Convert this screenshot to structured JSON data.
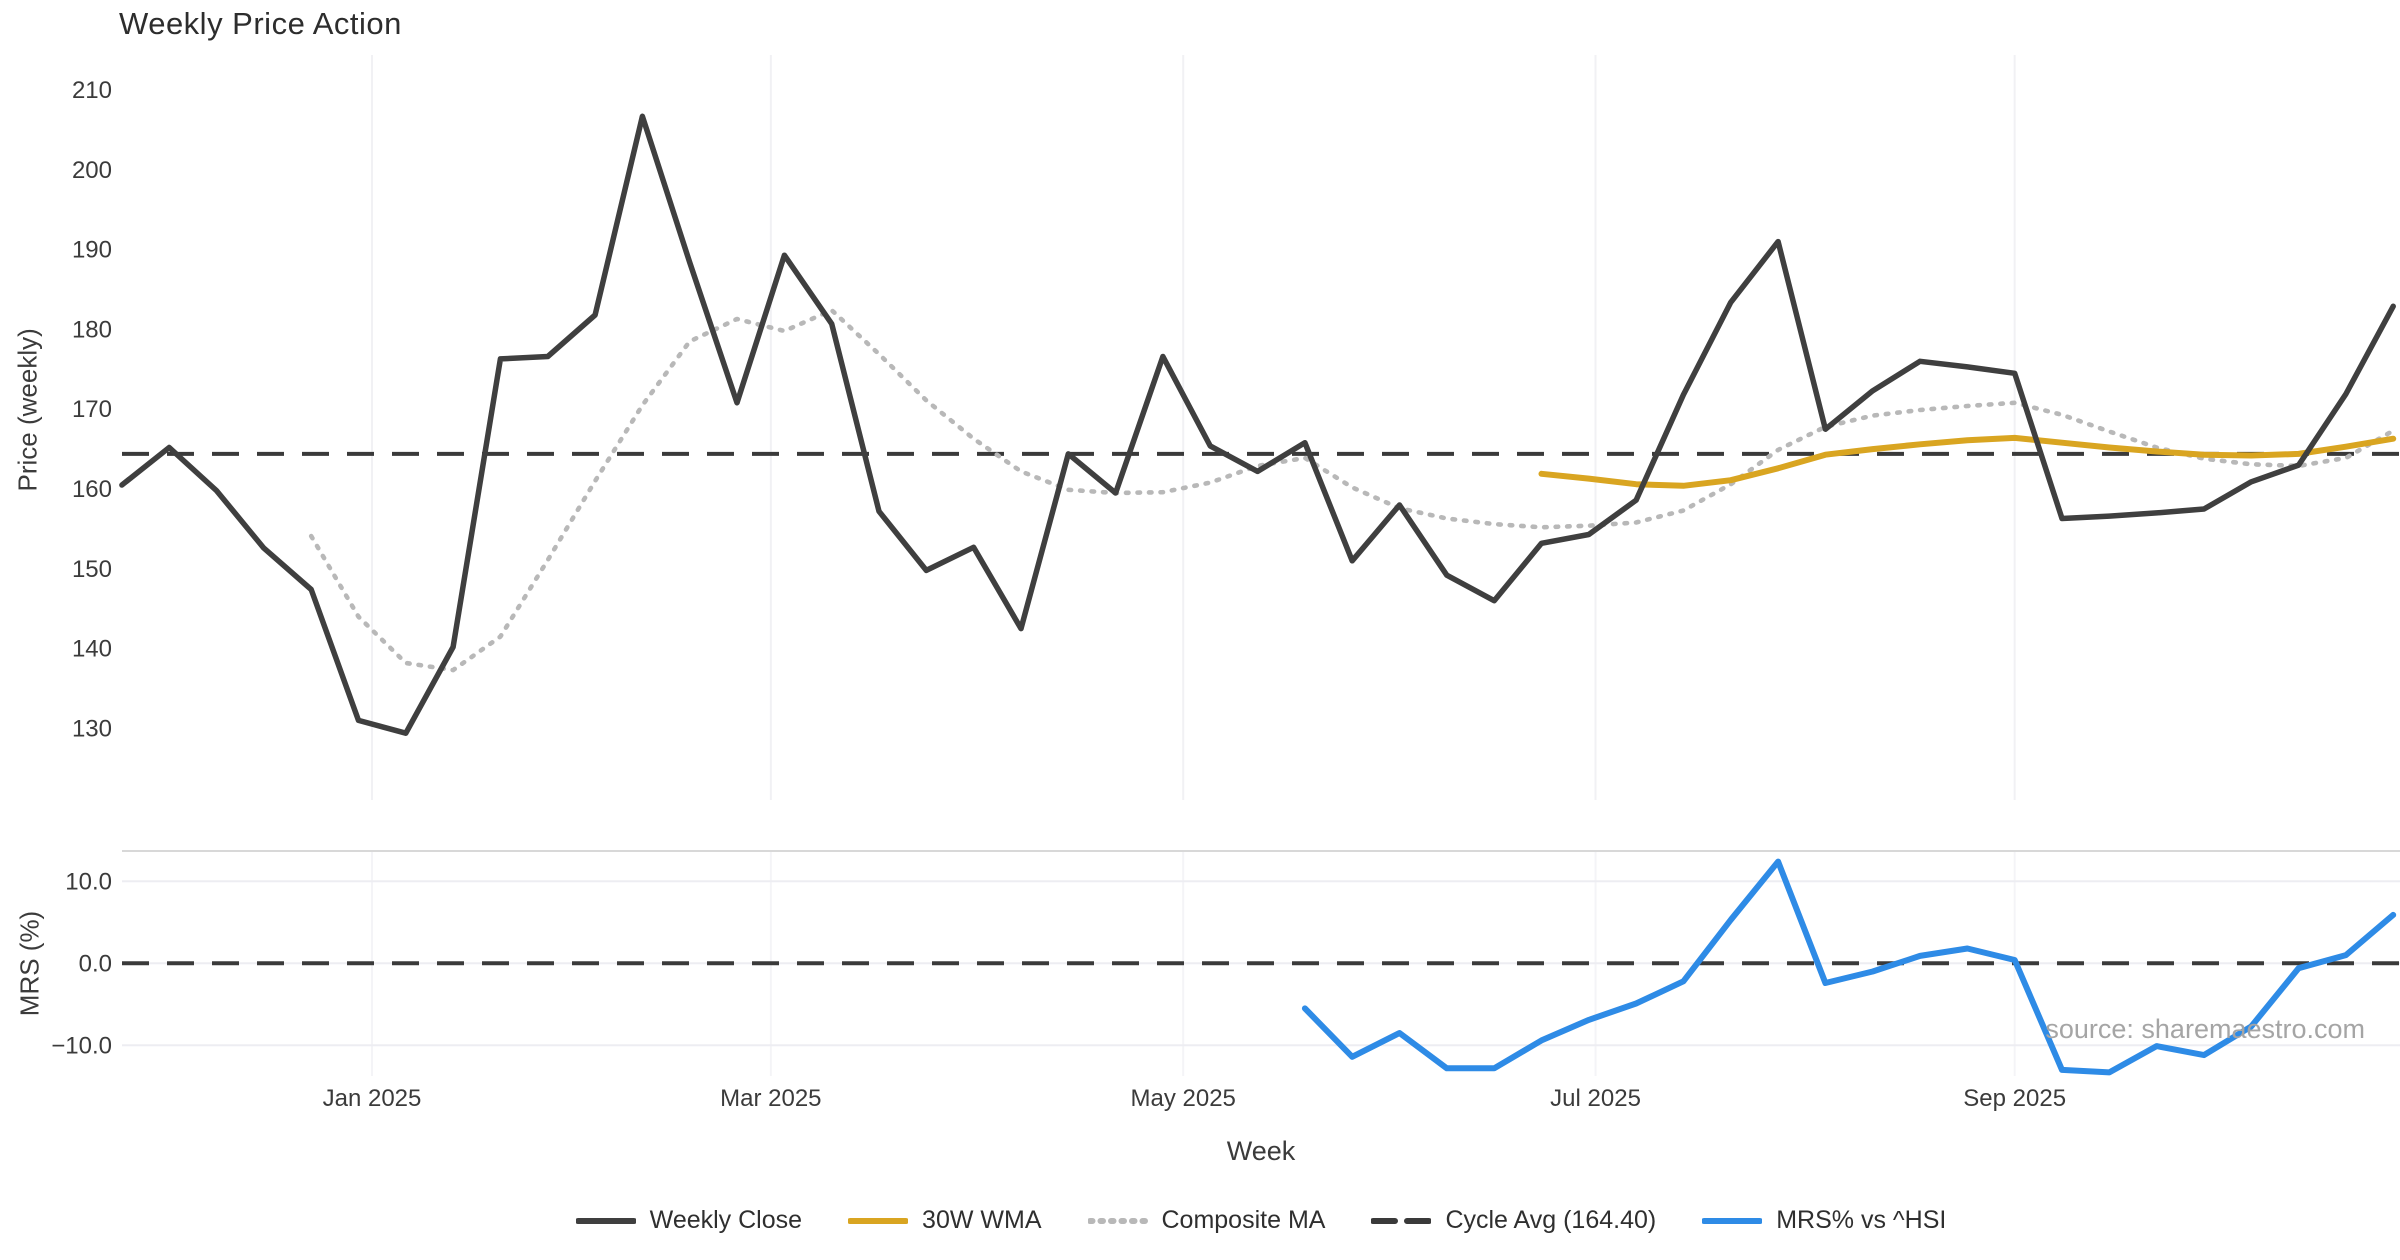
{
  "title": "Weekly Price Action",
  "source_note": "source: sharemaestro.com",
  "xlabel": "Week",
  "xticks": [
    "Jan 2025",
    "Mar 2025",
    "May 2025",
    "Jul 2025",
    "Sep 2025"
  ],
  "price_panel": {
    "ylabel": "Price (weekly)",
    "yticks": [
      "210",
      "200",
      "190",
      "180",
      "170",
      "160",
      "150",
      "140",
      "130"
    ]
  },
  "mrs_panel": {
    "ylabel": "MRS (%)",
    "yticks": [
      "10.0",
      "0.0",
      "−10.0"
    ]
  },
  "legend": [
    {
      "label": "Weekly Close",
      "type": "solid",
      "color": "#3f3f3f"
    },
    {
      "label": "30W WMA",
      "type": "solid",
      "color": "#d9a521"
    },
    {
      "label": "Composite MA",
      "type": "dotted",
      "color": "#b8b8b8"
    },
    {
      "label": "Cycle Avg (164.40)",
      "type": "dashed",
      "color": "#3a3a3a"
    },
    {
      "label": "MRS% vs ^HSI",
      "type": "solid",
      "color": "#2e8be6"
    }
  ],
  "colors": {
    "weekly_close": "#3f3f3f",
    "wma_30w": "#d9a521",
    "composite_ma": "#b8b8b8",
    "cycle_avg": "#3a3a3a",
    "mrs": "#2e8be6",
    "grid": "#ededf2",
    "panel_border": "#d8d8d8",
    "tick_text": "#3b3b3b"
  },
  "chart_data": [
    {
      "type": "line",
      "title": "Weekly Price Action",
      "xlabel": "Week",
      "ylabel": "Price (weekly)",
      "ylim": [
        127,
        213
      ],
      "yticks": [
        210,
        200,
        190,
        180,
        170,
        160,
        150,
        140,
        130
      ],
      "x_weekly_dates": [
        "2024-11-25",
        "2024-12-02",
        "2024-12-09",
        "2024-12-16",
        "2024-12-23",
        "2024-12-30",
        "2025-01-06",
        "2025-01-13",
        "2025-01-20",
        "2025-01-27",
        "2025-02-03",
        "2025-02-10",
        "2025-02-17",
        "2025-02-24",
        "2025-03-03",
        "2025-03-10",
        "2025-03-17",
        "2025-03-24",
        "2025-03-31",
        "2025-04-07",
        "2025-04-14",
        "2025-04-21",
        "2025-04-28",
        "2025-05-05",
        "2025-05-12",
        "2025-05-19",
        "2025-05-26",
        "2025-06-02",
        "2025-06-09",
        "2025-06-16",
        "2025-06-23",
        "2025-06-30",
        "2025-07-07",
        "2025-07-14",
        "2025-07-21",
        "2025-07-28",
        "2025-08-04",
        "2025-08-11",
        "2025-08-18",
        "2025-08-25",
        "2025-09-01",
        "2025-09-08",
        "2025-09-15",
        "2025-09-22",
        "2025-09-29",
        "2025-10-06",
        "2025-10-13",
        "2025-10-20",
        "2025-10-27"
      ],
      "series": [
        {
          "name": "Weekly Close",
          "start_index": 0,
          "values": [
            160.5,
            165.2,
            159.8,
            152.6,
            147.4,
            131.0,
            129.4,
            140.2,
            176.3,
            176.6,
            181.8,
            206.7,
            188.4,
            170.8,
            189.3,
            180.7,
            157.2,
            149.8,
            152.7,
            142.5,
            164.4,
            159.5,
            176.6,
            165.4,
            162.2,
            165.8,
            151.0,
            158.0,
            149.2,
            146.0,
            153.2,
            154.3,
            158.6,
            171.8,
            183.4,
            191.0,
            167.5,
            172.3,
            176.0,
            175.3,
            174.5,
            156.3,
            156.6,
            157.0,
            157.5,
            160.9,
            163.0,
            171.9,
            182.9
          ]
        },
        {
          "name": "Composite MA",
          "start_index": 4,
          "values": [
            154.1,
            144.0,
            138.2,
            137.3,
            141.5,
            151.1,
            161.0,
            170.5,
            178.5,
            181.3,
            179.8,
            182.4,
            176.9,
            171.1,
            166.3,
            162.2,
            159.9,
            159.5,
            159.6,
            160.8,
            162.9,
            163.9,
            160.2,
            157.6,
            156.3,
            155.6,
            155.2,
            155.4,
            155.8,
            157.3,
            160.6,
            164.9,
            167.8,
            169.2,
            169.9,
            170.4,
            170.8,
            169.3,
            167.2,
            165.2,
            163.8,
            163.1,
            162.9,
            163.9,
            167.3
          ]
        },
        {
          "name": "30W WMA",
          "start_index": 30,
          "values": [
            161.9,
            161.3,
            160.6,
            160.4,
            161.1,
            162.6,
            164.3,
            165.0,
            165.6,
            166.1,
            166.4,
            165.8,
            165.2,
            164.7,
            164.3,
            164.2,
            164.4,
            165.3,
            166.3
          ]
        }
      ],
      "reference_line": {
        "name": "Cycle Avg",
        "value": 164.4,
        "style": "dashed"
      },
      "grid": "vertical-months-only",
      "legend_position": "bottom-center"
    },
    {
      "type": "line",
      "ylabel": "MRS (%)",
      "ylim": [
        -14,
        13.7
      ],
      "yticks": [
        10.0,
        0.0,
        -10.0
      ],
      "series": [
        {
          "name": "MRS% vs ^HSI",
          "start_index": 25,
          "values": [
            -5.5,
            -11.4,
            -8.5,
            -12.8,
            -12.8,
            -9.4,
            -6.9,
            -4.9,
            -2.2,
            5.3,
            12.4,
            -2.4,
            -1.0,
            0.9,
            1.8,
            0.4,
            -13.0,
            -13.3,
            -10.1,
            -11.2,
            -7.7,
            -0.6,
            1.0,
            5.9
          ]
        }
      ],
      "reference_line": {
        "name": "Zero",
        "value": 0.0,
        "style": "dashed"
      },
      "annotation": "source: sharemaestro.com"
    }
  ]
}
